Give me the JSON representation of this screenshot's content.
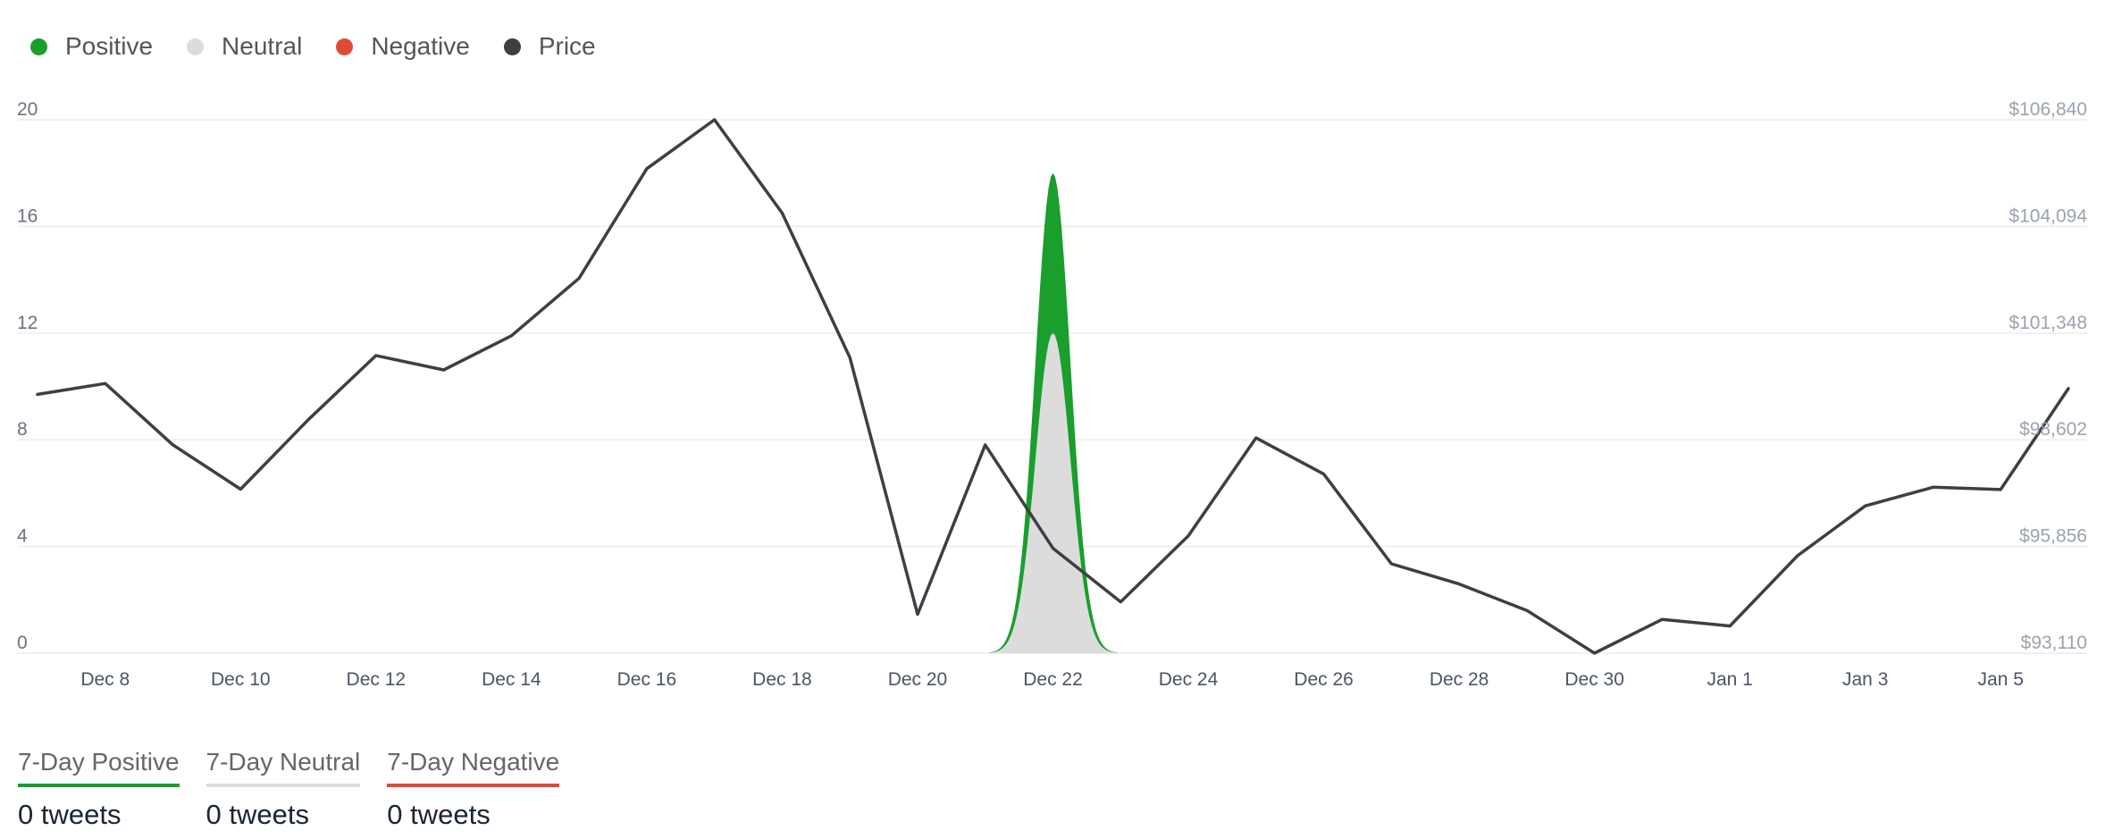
{
  "legend": [
    {
      "label": "Positive",
      "color": "#1a9e2c"
    },
    {
      "label": "Neutral",
      "color": "#dcdcdc"
    },
    {
      "label": "Negative",
      "color": "#e04b35"
    },
    {
      "label": "Price",
      "color": "#3c3f44"
    }
  ],
  "summary": [
    {
      "label": "7-Day Positive",
      "value": "0 tweets",
      "color": "#1a9e2c"
    },
    {
      "label": "7-Day Neutral",
      "value": "0 tweets",
      "color": "#dcdcdc"
    },
    {
      "label": "7-Day Negative",
      "value": "0 tweets",
      "color": "#e04b35"
    }
  ],
  "chart_data": {
    "type": "line",
    "title": "",
    "x": [
      "Dec 7",
      "Dec 8",
      "Dec 9",
      "Dec 10",
      "Dec 11",
      "Dec 12",
      "Dec 13",
      "Dec 14",
      "Dec 15",
      "Dec 16",
      "Dec 17",
      "Dec 18",
      "Dec 19",
      "Dec 20",
      "Dec 21",
      "Dec 22",
      "Dec 23",
      "Dec 24",
      "Dec 25",
      "Dec 26",
      "Dec 27",
      "Dec 28",
      "Dec 29",
      "Dec 30",
      "Dec 31",
      "Jan 1",
      "Jan 2",
      "Jan 3",
      "Jan 4",
      "Jan 5",
      "Jan 6"
    ],
    "x_tick_labels": [
      "Dec 8",
      "Dec 10",
      "Dec 12",
      "Dec 14",
      "Dec 16",
      "Dec 18",
      "Dec 20",
      "Dec 22",
      "Dec 24",
      "Dec 26",
      "Dec 28",
      "Dec 30",
      "Jan 1",
      "Jan 3",
      "Jan 5"
    ],
    "y_left": {
      "ticks": [
        "0",
        "4",
        "8",
        "12",
        "16",
        "20"
      ],
      "range": [
        0,
        20
      ]
    },
    "y_right": {
      "ticks": [
        "$93,110",
        "$95,856",
        "$98,602",
        "$101,348",
        "$104,094",
        "$106,840"
      ],
      "range": [
        93110,
        106840
      ]
    },
    "series": [
      {
        "name": "Price",
        "axis": "right",
        "color": "#3c3f44",
        "values": [
          99770,
          100050,
          98470,
          97330,
          99120,
          100770,
          100400,
          101280,
          102760,
          105580,
          106840,
          104440,
          100720,
          94110,
          98470,
          95810,
          94430,
          96130,
          98650,
          97720,
          95410,
          94890,
          94210,
          93110,
          93980,
          93810,
          95620,
          96900,
          97380,
          97320,
          99920
        ]
      },
      {
        "name": "Neutral",
        "axis": "left",
        "color": "#dcdcdc",
        "values": [
          0,
          0,
          0,
          0,
          0,
          0,
          0,
          0,
          0,
          0,
          0,
          0,
          0,
          0,
          0,
          12,
          0,
          0,
          0,
          0,
          0,
          0,
          0,
          0,
          0,
          0,
          0,
          0,
          0,
          0,
          0
        ]
      },
      {
        "name": "Positive",
        "axis": "left",
        "color": "#1a9e2c",
        "values": [
          0,
          0,
          0,
          0,
          0,
          0,
          0,
          0,
          0,
          0,
          0,
          0,
          0,
          0,
          0,
          6,
          0,
          0,
          0,
          0,
          0,
          0,
          0,
          0,
          0,
          0,
          0,
          0,
          0,
          0,
          0
        ]
      },
      {
        "name": "Negative",
        "axis": "left",
        "color": "#e04b35",
        "values": [
          0,
          0,
          0,
          0,
          0,
          0,
          0,
          0,
          0,
          0,
          0,
          0,
          0,
          0,
          0,
          0,
          0,
          0,
          0,
          0,
          0,
          0,
          0,
          0,
          0,
          0,
          0,
          0,
          0,
          0,
          0
        ]
      }
    ],
    "grid": true,
    "legend_position": "top-left"
  }
}
